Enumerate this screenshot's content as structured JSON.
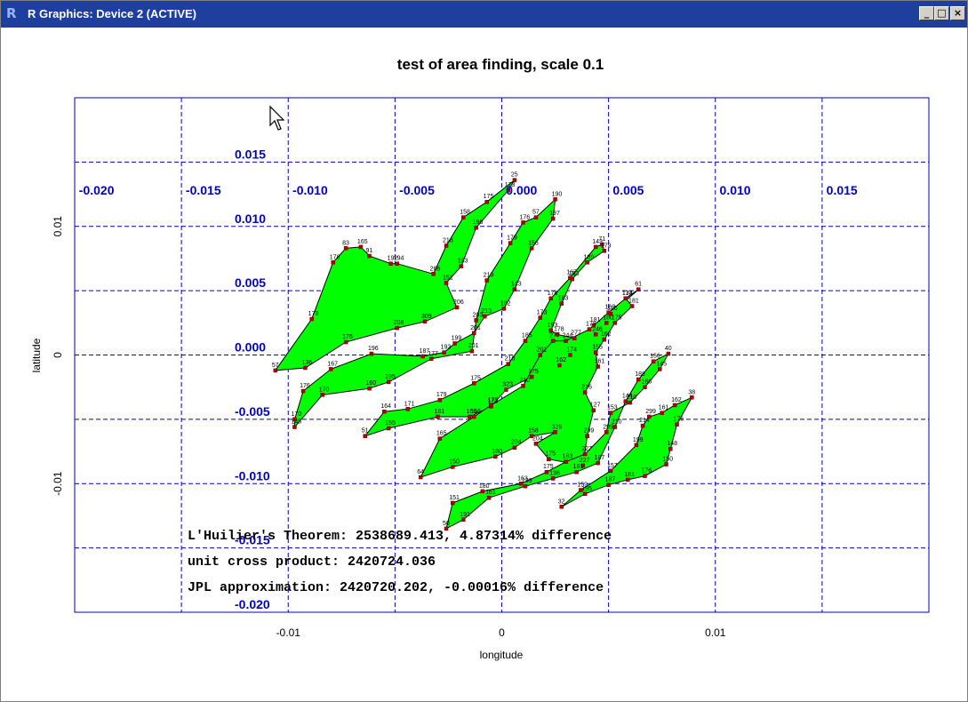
{
  "window": {
    "title": "R Graphics: Device 2 (ACTIVE)",
    "icon": "r-logo-icon",
    "controls": {
      "minimize": "_",
      "maximize": "□",
      "close": "×"
    }
  },
  "chart_data": {
    "type": "scatter",
    "title": "test of area finding, scale 0.1",
    "xlabel": "longitude",
    "ylabel": "latitude",
    "xlim": [
      -0.02,
      0.02
    ],
    "ylim": [
      -0.02,
      0.02
    ],
    "x_ticks": [
      -0.01,
      0,
      0.01
    ],
    "x_tick_labels": [
      "-0.01",
      "0",
      "0.01"
    ],
    "y_ticks": [
      -0.01,
      0,
      0.01
    ],
    "y_tick_labels": [
      "-0.01",
      "0",
      "0.01"
    ],
    "grid": {
      "color": "#0000c0",
      "style": "dashed",
      "x": [
        -0.015,
        -0.01,
        -0.005,
        0,
        0.005,
        0.01,
        0.015
      ],
      "y": [
        -0.015,
        -0.01,
        -0.005,
        0,
        0.005,
        0.01,
        0.015
      ],
      "x_labels": [
        "-0.020",
        "-0.015",
        "-0.010",
        "-0.005",
        "0.000",
        "0.005",
        "0.010",
        "0.015"
      ],
      "x_label_values": [
        -0.0198,
        -0.0148,
        -0.0098,
        -0.0048,
        0.0002,
        0.0052,
        0.0102,
        0.0152
      ],
      "y_labels": [
        "0.015",
        "0.010",
        "0.005",
        "0.000",
        "-0.005",
        "-0.010",
        "-0.015",
        "-0.020"
      ],
      "y_label_values": [
        0.015,
        0.01,
        0.005,
        0.0,
        -0.005,
        -0.01,
        -0.015,
        -0.02
      ]
    },
    "polygon_fill": "#00ff00",
    "point_color": "#b00000",
    "polygons": [
      {
        "points": [
          [
            -0.0106,
            -0.0012
          ],
          [
            -0.0089,
            0.0028
          ],
          [
            -0.0079,
            0.0072
          ],
          [
            -0.0073,
            0.0083
          ],
          [
            -0.0066,
            0.0084
          ],
          [
            -0.0062,
            0.0077
          ],
          [
            -0.0052,
            0.0071
          ],
          [
            -0.0049,
            0.0071
          ],
          [
            -0.0032,
            0.0063
          ],
          [
            -0.0026,
            0.0085
          ],
          [
            -0.0018,
            0.0107
          ],
          [
            -0.0007,
            0.0119
          ],
          [
            0.0006,
            0.0136
          ],
          [
            0.0003,
            0.0128
          ],
          [
            -0.0012,
            0.0099
          ],
          [
            -0.0019,
            0.0069
          ],
          [
            -0.0026,
            0.0056
          ],
          [
            -0.0021,
            0.0037
          ],
          [
            -0.0036,
            0.0026
          ],
          [
            -0.0049,
            0.0021
          ],
          [
            -0.0073,
            0.001
          ],
          [
            -0.0092,
            -0.001
          ]
        ],
        "labels": [
          "57",
          "178",
          "178",
          "83",
          "165",
          "91",
          "192",
          "194",
          "266",
          "218",
          "158",
          "175",
          "25",
          "173",
          "190",
          "183",
          "151",
          "206",
          "309",
          "208",
          "176",
          "136"
        ]
      },
      {
        "points": [
          [
            -0.0097,
            -0.0056
          ],
          [
            -0.0084,
            -0.0031
          ],
          [
            -0.0062,
            -0.0026
          ],
          [
            -0.0053,
            -0.0021
          ],
          [
            -0.0033,
            -0.0003
          ],
          [
            -0.0014,
            0.0003
          ],
          [
            -0.0012,
            0.0027
          ],
          [
            -0.0007,
            0.0058
          ],
          [
            0.0004,
            0.0087
          ],
          [
            0.001,
            0.0103
          ],
          [
            0.0016,
            0.0107
          ],
          [
            0.0025,
            0.0121
          ],
          [
            0.0024,
            0.0106
          ],
          [
            0.0014,
            0.0083
          ],
          [
            0.0006,
            0.0051
          ],
          [
            0.0001,
            0.0036
          ],
          [
            -0.0008,
            0.003
          ],
          [
            -0.0013,
            0.0017
          ],
          [
            -0.0022,
            0.0009
          ],
          [
            -0.0027,
            0.0002
          ],
          [
            -0.0037,
            -0.0001
          ],
          [
            -0.0061,
            0.0001
          ],
          [
            -0.008,
            -0.0011
          ],
          [
            -0.0093,
            -0.0028
          ],
          [
            -0.0097,
            -0.005
          ]
        ],
        "labels": [
          "145",
          "170",
          "160",
          "195",
          "177",
          "201",
          "203",
          "219",
          "179",
          "176",
          "57",
          "190",
          "197",
          "156",
          "143",
          "182",
          "213",
          "201",
          "199",
          "193",
          "187",
          "196",
          "167",
          "176",
          "170"
        ]
      },
      {
        "points": [
          [
            -0.0064,
            -0.0063
          ],
          [
            -0.0055,
            -0.0044
          ],
          [
            -0.0044,
            -0.0042
          ],
          [
            -0.0029,
            -0.0035
          ],
          [
            -0.0013,
            -0.0022
          ],
          [
            0.0003,
            -0.0007
          ],
          [
            0.0011,
            0.0011
          ],
          [
            0.0018,
            0.0029
          ],
          [
            0.0023,
            0.0044
          ],
          [
            0.0032,
            0.006
          ],
          [
            0.0044,
            0.0084
          ],
          [
            0.0047,
            0.0086
          ],
          [
            0.0048,
            0.0081
          ],
          [
            0.004,
            0.0072
          ],
          [
            0.0033,
            0.0059
          ],
          [
            0.0028,
            0.004
          ],
          [
            0.0023,
            0.0019
          ],
          [
            0.0026,
            0.0016
          ],
          [
            0.0034,
            0.0013
          ],
          [
            0.0044,
            0.0016
          ],
          [
            0.0049,
            0.0025
          ],
          [
            0.0058,
            0.0044
          ],
          [
            0.0064,
            0.0051
          ],
          [
            0.0051,
            0.0032
          ],
          [
            0.0043,
            0.0023
          ],
          [
            0.0032,
            0.0
          ],
          [
            0.0027,
            -0.0008
          ],
          [
            0.0014,
            -0.0017
          ],
          [
            0.0002,
            -0.0027
          ],
          [
            -0.0005,
            -0.004
          ],
          [
            -0.0015,
            -0.0048
          ],
          [
            -0.003,
            -0.0048
          ],
          [
            -0.0053,
            -0.0057
          ]
        ],
        "labels": [
          "51",
          "164",
          "171",
          "179",
          "175",
          "210",
          "185",
          "173",
          "176",
          "167",
          "143",
          "71",
          "179",
          "189",
          "153",
          "183",
          "193",
          "178",
          "277",
          "246",
          "180",
          "173",
          "61",
          "126",
          "181",
          "174",
          "162",
          "175",
          "323",
          "173",
          "166",
          "181",
          "155"
        ]
      },
      {
        "points": [
          [
            -0.0038,
            -0.0095
          ],
          [
            -0.0029,
            -0.0065
          ],
          [
            -0.0013,
            -0.0048
          ],
          [
            -0.0005,
            -0.0039
          ],
          [
            0.001,
            -0.0024
          ],
          [
            0.0018,
            0.0
          ],
          [
            0.0024,
            0.0011
          ],
          [
            0.003,
            0.0011
          ],
          [
            0.0041,
            0.002
          ],
          [
            0.005,
            0.0033
          ],
          [
            0.0058,
            0.0044
          ],
          [
            0.0061,
            0.0038
          ],
          [
            0.0053,
            0.0025
          ],
          [
            0.0048,
            0.0012
          ],
          [
            0.0044,
            0.0002
          ],
          [
            0.0045,
            -0.0009
          ],
          [
            0.0039,
            -0.0029
          ],
          [
            0.0043,
            -0.0043
          ],
          [
            0.004,
            -0.0063
          ],
          [
            0.0038,
            -0.0086
          ],
          [
            0.0022,
            -0.0081
          ],
          [
            0.0016,
            -0.0069
          ],
          [
            0.0025,
            -0.006
          ],
          [
            0.0014,
            -0.0063
          ],
          [
            0.0006,
            -0.0072
          ],
          [
            -0.0003,
            -0.0079
          ],
          [
            -0.0023,
            -0.0087
          ]
        ],
        "labels": [
          "64",
          "165",
          "166",
          "173",
          "210",
          "201",
          "277",
          "244",
          "178",
          "163",
          "134",
          "181",
          "175",
          "162",
          "155",
          "161",
          "216",
          "127",
          "299",
          "227",
          "175",
          "204",
          "329",
          "158",
          "204",
          "180",
          "150"
        ]
      },
      {
        "points": [
          [
            -0.0026,
            -0.0135
          ],
          [
            -0.0023,
            -0.0115
          ],
          [
            -0.0009,
            -0.0106
          ],
          [
            0.0009,
            -0.01
          ],
          [
            0.0021,
            -0.0091
          ],
          [
            0.003,
            -0.0083
          ],
          [
            0.0039,
            -0.0077
          ],
          [
            0.0049,
            -0.006
          ],
          [
            0.0051,
            -0.0045
          ],
          [
            0.006,
            -0.0037
          ],
          [
            0.0067,
            -0.0025
          ],
          [
            0.0074,
            -0.0011
          ],
          [
            0.0078,
            0.0001
          ],
          [
            0.0071,
            -0.0005
          ],
          [
            0.0064,
            -0.0019
          ],
          [
            0.0058,
            -0.0036
          ],
          [
            0.0053,
            -0.0056
          ],
          [
            0.0045,
            -0.0084
          ],
          [
            0.0035,
            -0.0091
          ],
          [
            0.0024,
            -0.0096
          ],
          [
            0.0011,
            -0.0102
          ],
          [
            -0.0006,
            -0.0111
          ],
          [
            -0.0018,
            -0.0128
          ]
        ],
        "labels": [
          "50",
          "151",
          "180",
          "163",
          "175",
          "183",
          "227",
          "299",
          "153",
          "210",
          "166",
          "145",
          "40",
          "156",
          "188",
          "144",
          "210",
          "187",
          "181",
          "136",
          "139",
          "161",
          "191"
        ]
      },
      {
        "points": [
          [
            0.0028,
            -0.0118
          ],
          [
            0.0039,
            -0.0108
          ],
          [
            0.005,
            -0.0101
          ],
          [
            0.0059,
            -0.0097
          ],
          [
            0.0067,
            -0.0094
          ],
          [
            0.0077,
            -0.0085
          ],
          [
            0.0079,
            -0.0073
          ],
          [
            0.0082,
            -0.0054
          ],
          [
            0.0089,
            -0.0033
          ],
          [
            0.0081,
            -0.0039
          ],
          [
            0.0075,
            -0.0045
          ],
          [
            0.0069,
            -0.0048
          ],
          [
            0.0066,
            -0.0055
          ],
          [
            0.0063,
            -0.007
          ],
          [
            0.0051,
            -0.009
          ],
          [
            0.0037,
            -0.0105
          ]
        ],
        "labels": [
          "32",
          "195",
          "187",
          "181",
          "176",
          "150",
          "148",
          "176",
          "38",
          "162",
          "161",
          "299",
          "214",
          "199",
          "157",
          "159"
        ]
      }
    ],
    "annotations": [
      {
        "text": "L'Huilier's Theorem: 2538689.413, 4.87314% difference"
      },
      {
        "text": "unit cross product: 2420724.036"
      },
      {
        "text": "JPL approximation:  2420720.202, -0.00016% difference"
      }
    ]
  }
}
